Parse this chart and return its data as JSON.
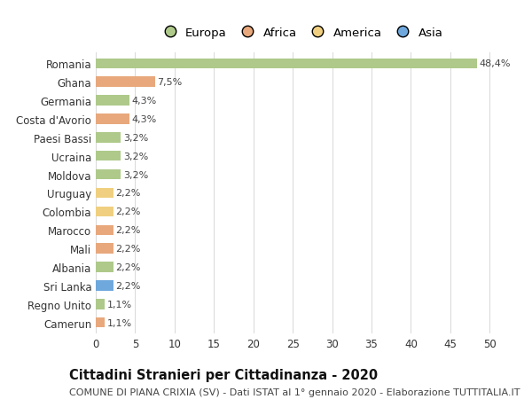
{
  "title": "Cittadini Stranieri per Cittadinanza - 2020",
  "subtitle": "COMUNE DI PIANA CRIXIA (SV) - Dati ISTAT al 1° gennaio 2020 - Elaborazione TUTTITALIA.IT",
  "categories": [
    "Romania",
    "Ghana",
    "Germania",
    "Costa d'Avorio",
    "Paesi Bassi",
    "Ucraina",
    "Moldova",
    "Uruguay",
    "Colombia",
    "Marocco",
    "Mali",
    "Albania",
    "Sri Lanka",
    "Regno Unito",
    "Camerun"
  ],
  "values": [
    48.4,
    7.5,
    4.3,
    4.3,
    3.2,
    3.2,
    3.2,
    2.2,
    2.2,
    2.2,
    2.2,
    2.2,
    2.2,
    1.1,
    1.1
  ],
  "labels": [
    "48,4%",
    "7,5%",
    "4,3%",
    "4,3%",
    "3,2%",
    "3,2%",
    "3,2%",
    "2,2%",
    "2,2%",
    "2,2%",
    "2,2%",
    "2,2%",
    "2,2%",
    "1,1%",
    "1,1%"
  ],
  "colors": [
    "#aec98a",
    "#e8a87c",
    "#aec98a",
    "#e8a87c",
    "#aec98a",
    "#aec98a",
    "#aec98a",
    "#f0d080",
    "#f0d080",
    "#e8a87c",
    "#e8a87c",
    "#aec98a",
    "#6fa8dc",
    "#aec98a",
    "#e8a87c"
  ],
  "legend_labels": [
    "Europa",
    "Africa",
    "America",
    "Asia"
  ],
  "legend_colors": [
    "#aec98a",
    "#e8a87c",
    "#f0d080",
    "#6fa8dc"
  ],
  "xlim": [
    0,
    52
  ],
  "xticks": [
    0,
    5,
    10,
    15,
    20,
    25,
    30,
    35,
    40,
    45,
    50
  ],
  "background_color": "#ffffff",
  "grid_color": "#d8d8d8",
  "bar_height": 0.55,
  "title_fontsize": 10.5,
  "subtitle_fontsize": 8,
  "label_fontsize": 8,
  "tick_fontsize": 8.5,
  "legend_fontsize": 9.5
}
